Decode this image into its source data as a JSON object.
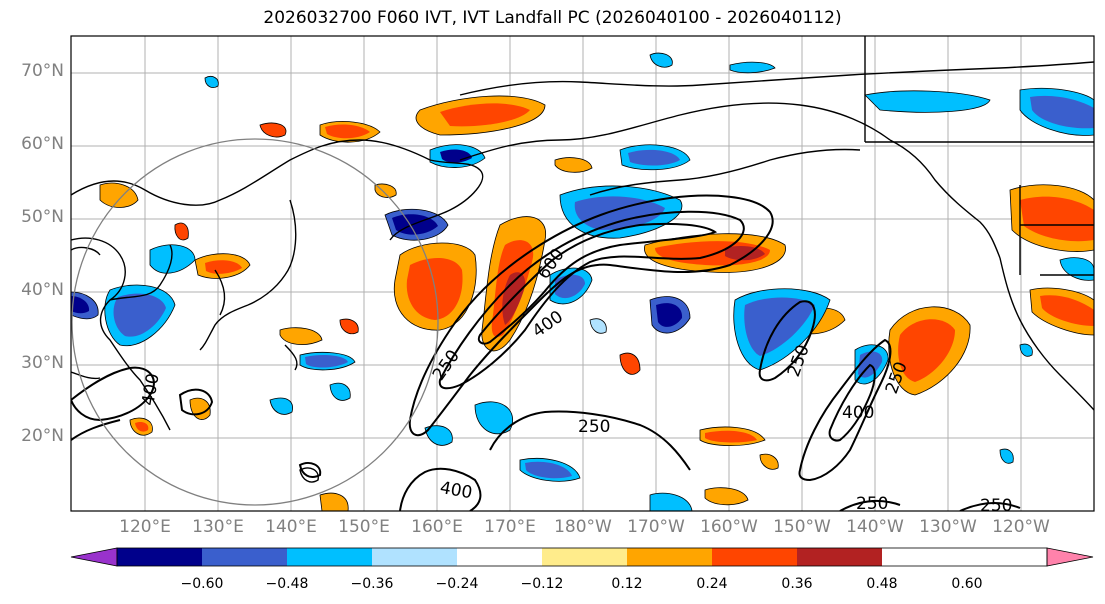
{
  "title": "2026032700 F060 IVT, IVT Landfall PC (2026040100 - 2026040112)",
  "lat_labels": [
    "70°N",
    "60°N",
    "50°N",
    "40°N",
    "30°N",
    "20°N"
  ],
  "lon_labels": [
    "120°E",
    "130°E",
    "140°E",
    "150°E",
    "160°E",
    "170°E",
    "180°W",
    "170°W",
    "160°W",
    "150°W",
    "140°W",
    "130°W",
    "120°W"
  ],
  "contour_labels": [
    "600",
    "400",
    "250",
    "400",
    "250",
    "250",
    "400",
    "250",
    "400",
    "250",
    "250"
  ],
  "colorbar": {
    "labels": [
      "−0.60",
      "−0.48",
      "−0.36",
      "−0.24",
      "−0.12",
      "0.12",
      "0.24",
      "0.36",
      "0.48",
      "0.60"
    ],
    "colors": [
      "#9932cc",
      "#00008b",
      "#3a5fcd",
      "#00bfff",
      "#b0e2ff",
      "#ffffff",
      "#ffec8b",
      "#ffa500",
      "#ff4500",
      "#b22222",
      "#ff82ab"
    ]
  }
}
